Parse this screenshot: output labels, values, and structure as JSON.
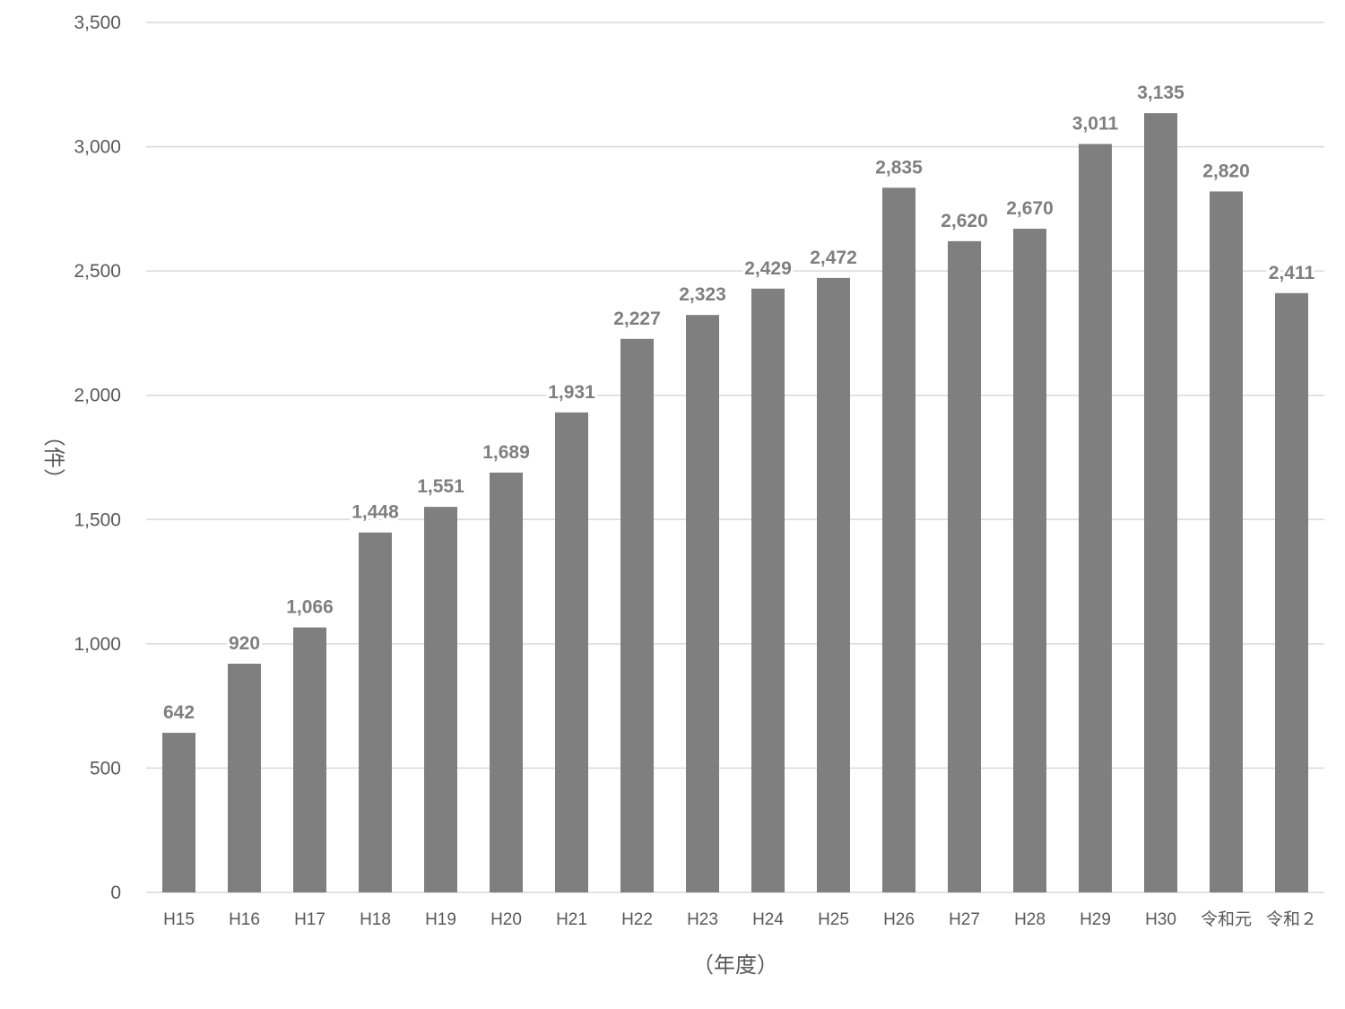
{
  "chart_data": {
    "type": "bar",
    "categories": [
      "H15",
      "H16",
      "H17",
      "H18",
      "H19",
      "H20",
      "H21",
      "H22",
      "H23",
      "H24",
      "H25",
      "H26",
      "H27",
      "H28",
      "H29",
      "H30",
      "令和元",
      "令和２"
    ],
    "values": [
      642,
      920,
      1066,
      1448,
      1551,
      1689,
      1931,
      2227,
      2323,
      2429,
      2472,
      2835,
      2620,
      2670,
      3011,
      3135,
      2820,
      2411
    ],
    "data_labels": [
      "642",
      "920",
      "1,066",
      "1,448",
      "1,551",
      "1,689",
      "1,931",
      "2,227",
      "2,323",
      "2,429",
      "2,472",
      "2,835",
      "2,620",
      "2,670",
      "3,011",
      "3,135",
      "2,820",
      "2,411"
    ],
    "title": "",
    "xlabel": "（年度）",
    "ylabel": "（件）",
    "ylim": [
      0,
      3500
    ],
    "y_ticks": [
      0,
      500,
      1000,
      1500,
      2000,
      2500,
      3000,
      3500
    ],
    "y_tick_labels": [
      "0",
      "500",
      "1,000",
      "1,500",
      "2,000",
      "2,500",
      "3,000",
      "3,500"
    ],
    "grid": true,
    "legend": "none",
    "bar_color": "#7f7f7f",
    "grid_color": "#d9d9d9",
    "text_color": "#595959"
  }
}
